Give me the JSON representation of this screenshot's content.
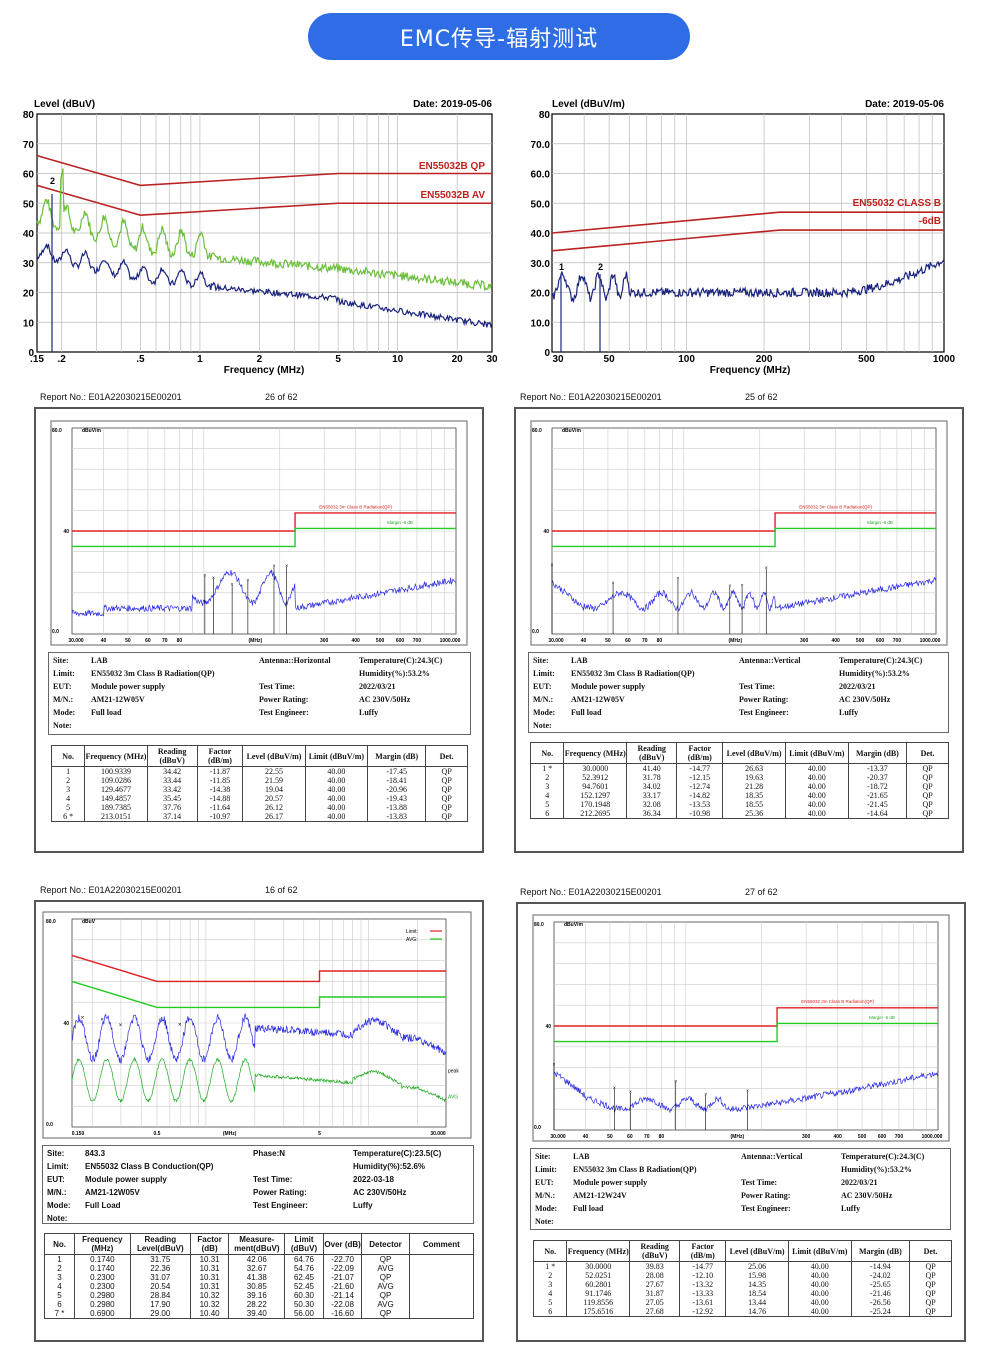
{
  "banner": {
    "title": "EMC传导-辐射测试"
  },
  "top_left": {
    "level": "Level (dBuV)",
    "date": "Date: 2019-05-06",
    "freq": "Frequency (MHz)",
    "qp": "EN55032B QP",
    "av": "EN55032B AV",
    "yticks": [
      "80",
      "70",
      "60",
      "50",
      "40",
      "30",
      "20",
      "10",
      "0"
    ],
    "xticks": [
      ".15",
      ".2",
      ".5",
      "1",
      "2",
      "5",
      "10",
      "20",
      "30"
    ]
  },
  "top_right": {
    "level": "Level (dBuV/m)",
    "date": "Date: 2019-05-06",
    "freq": "Frequency (MHz)",
    "limit": "EN55032 CLASS B",
    "margin": "-6dB",
    "yticks": [
      "80",
      "70.0",
      "60.0",
      "50.0",
      "40.0",
      "30.0",
      "20.0",
      "10.0",
      "0"
    ],
    "xticks": [
      "30",
      "50",
      "100",
      "200",
      "500",
      "1000"
    ]
  },
  "reports": [
    {
      "report": "Report No.: E01A22030215E00201",
      "page": "26 of 62"
    },
    {
      "report": "Report No.: E01A22030215E00201",
      "page": "25 of 62"
    },
    {
      "report": "Report No.: E01A22030215E00201",
      "page": "16 of 62"
    },
    {
      "report": "Report No.: E01A22030215E00201",
      "page": "27 of 62"
    }
  ],
  "rad_common": {
    "y80": "80.0",
    "y40": "40",
    "y0": "0.0",
    "unit": "dBuV/m",
    "xticks": [
      "30.000",
      "40",
      "50",
      "60",
      "70",
      "80",
      "(MHz)",
      "300",
      "400",
      "500",
      "600",
      "700",
      "1000.000"
    ],
    "limit": "EN55032 3m Class B Radiation(QP)",
    "margin": "Margin -6 dB"
  },
  "cond": {
    "y80": "80.0",
    "y40": "40",
    "y0": "0.0",
    "unit": "dBuV",
    "xticks": [
      "0.150",
      "0.5",
      "(MHz)",
      "5",
      "30.000"
    ],
    "legend_limit": "Limit:",
    "legend_avg": "AVG:",
    "peak": "peak",
    "avg": "AVG"
  },
  "info_labels": {
    "site": "Site:",
    "limit": "Limit:",
    "eut": "EUT:",
    "mn": "M/N.:",
    "mode": "Mode:",
    "note": "Note:",
    "test_time": "Test Time:",
    "power": "Power Rating:",
    "engineer": "Test Engineer:"
  },
  "info1": {
    "site": "LAB",
    "limit": "EN55032 3m Class B Radiation(QP)",
    "eut": "Module power supply",
    "mn": "AM21-12W05V",
    "mode": "Full load",
    "antenna": "Antenna::Horizontal",
    "temp": "Temperature(C):24.3(C)",
    "hum": "Humidity(%):53.2%",
    "time": "2022/03/21",
    "power": "AC 230V/50Hz",
    "engineer": "Luffy"
  },
  "info2": {
    "site": "LAB",
    "limit": "EN55032 3m Class B Radiation(QP)",
    "eut": "Module power supply",
    "mn": "AM21-12W05V",
    "mode": "Full load",
    "antenna": "Antenna::Vertical",
    "temp": "Temperature(C):24.3(C)",
    "hum": "Humidity(%):53.2%",
    "time": "2022/03/21",
    "power": "AC 230V/50Hz",
    "engineer": "Luffy"
  },
  "info3": {
    "site": "843.3",
    "limit": "EN55032 Class B Conduction(QP)",
    "eut": "Module power supply",
    "mn": "AM21-12W05V",
    "mode": "Full Load",
    "antenna": "Phase:N",
    "temp": "Temperature(C):23.5(C)",
    "hum": "Humidity(%):52.6%",
    "time": "2022-03-18",
    "power": "AC 230V/50Hz",
    "engineer": "Luffy"
  },
  "info4": {
    "site": "LAB",
    "limit": "EN55032 3m Class B Radiation(QP)",
    "eut": "Module power supply",
    "mn": "AM21-12W24V",
    "mode": "Full load",
    "antenna": "Antenna::Vertical",
    "temp": "Temperature(C):24.3(C)",
    "hum": "Humidity(%):53.2%",
    "time": "2022/03/21",
    "power": "AC 230V/50Hz",
    "engineer": "Luffy"
  },
  "rad_headers": [
    "No.",
    "Frequency (MHz)",
    "Reading (dBuV)",
    "Factor (dB/m)",
    "Level (dBuV/m)",
    "Limit (dBuV/m)",
    "Margin (dB)",
    "Det."
  ],
  "cond_headers": [
    "No.",
    "Frequency (MHz)",
    "Reading Level(dBuV)",
    "Factor (dB)",
    "Measure-ment(dBuV)",
    "Limit (dBuV)",
    "Over (dB)",
    "Detector",
    "Comment"
  ],
  "table1": [
    [
      "1",
      "100.9339",
      "34.42",
      "-11.87",
      "22.55",
      "40.00",
      "-17.45",
      "QP"
    ],
    [
      "2",
      "109.0286",
      "33.44",
      "-11.85",
      "21.59",
      "40.00",
      "-18.41",
      "QP"
    ],
    [
      "3",
      "129.4677",
      "33.42",
      "-14.38",
      "19.04",
      "40.00",
      "-20.96",
      "QP"
    ],
    [
      "4",
      "149.4857",
      "35.45",
      "-14.88",
      "20.57",
      "40.00",
      "-19.43",
      "QP"
    ],
    [
      "5",
      "189.7385",
      "37.76",
      "-11.64",
      "26.12",
      "40.00",
      "-13.88",
      "QP"
    ],
    [
      "6 *",
      "213.0151",
      "37.14",
      "-10.97",
      "26.17",
      "40.00",
      "-13.83",
      "QP"
    ]
  ],
  "table2": [
    [
      "1 *",
      "30.0000",
      "41.40",
      "-14.77",
      "26.63",
      "40.00",
      "-13.37",
      "QP"
    ],
    [
      "2",
      "52.3912",
      "31.78",
      "-12.15",
      "19.63",
      "40.00",
      "-20.37",
      "QP"
    ],
    [
      "3",
      "94.7601",
      "34.02",
      "-12.74",
      "21.28",
      "40.00",
      "-18.72",
      "QP"
    ],
    [
      "4",
      "152.1297",
      "33.17",
      "-14.82",
      "18.35",
      "40.00",
      "-21.65",
      "QP"
    ],
    [
      "5",
      "170.1948",
      "32.08",
      "-13.53",
      "18.55",
      "40.00",
      "-21.45",
      "QP"
    ],
    [
      "6",
      "212.2695",
      "36.34",
      "-10.98",
      "25.36",
      "40.00",
      "-14.64",
      "QP"
    ]
  ],
  "table3": [
    [
      "1",
      "0.1740",
      "31.75",
      "10.31",
      "42.06",
      "64.76",
      "-22.70",
      "QP",
      ""
    ],
    [
      "2",
      "0.1740",
      "22.36",
      "10.31",
      "32.67",
      "54.76",
      "-22.09",
      "AVG",
      ""
    ],
    [
      "3",
      "0.2300",
      "31.07",
      "10.31",
      "41.38",
      "62.45",
      "-21.07",
      "QP",
      ""
    ],
    [
      "4",
      "0.2300",
      "20.54",
      "10.31",
      "30.85",
      "52.45",
      "-21.60",
      "AVG",
      ""
    ],
    [
      "5",
      "0.2980",
      "28.84",
      "10.32",
      "39.16",
      "60.30",
      "-21.14",
      "QP",
      ""
    ],
    [
      "6",
      "0.2980",
      "17.90",
      "10.32",
      "28.22",
      "50.30",
      "-22.08",
      "AVG",
      ""
    ],
    [
      "7 *",
      "0.6900",
      "29.00",
      "10.40",
      "39.40",
      "56.00",
      "-16.60",
      "QP",
      ""
    ]
  ],
  "table4": [
    [
      "1 *",
      "30.0000",
      "39.83",
      "-14.77",
      "25.06",
      "40.00",
      "-14.94",
      "QP"
    ],
    [
      "2",
      "52.0251",
      "28.08",
      "-12.10",
      "15.98",
      "40.00",
      "-24.02",
      "QP"
    ],
    [
      "3",
      "60.2801",
      "27.67",
      "-13.32",
      "14.35",
      "40.00",
      "-25.65",
      "QP"
    ],
    [
      "4",
      "91.1746",
      "31.87",
      "-13.33",
      "18.54",
      "40.00",
      "-21.46",
      "QP"
    ],
    [
      "5",
      "119.8556",
      "27.05",
      "-13.61",
      "13.44",
      "40.00",
      "-26.56",
      "QP"
    ],
    [
      "6",
      "175.6516",
      "27.68",
      "-12.92",
      "14.76",
      "40.00",
      "-25.24",
      "QP"
    ]
  ],
  "chart_data": [
    {
      "type": "line",
      "title": "",
      "xlabel": "Frequency (MHz)",
      "ylabel": "Level (dBuV)",
      "xscale": "log",
      "xlim": [
        0.15,
        30
      ],
      "ylim": [
        0,
        80
      ],
      "series": [
        {
          "name": "EN55032B QP",
          "x": [
            0.15,
            0.5,
            5,
            30
          ],
          "y": [
            66,
            56,
            60,
            60
          ]
        },
        {
          "name": "EN55032B AV",
          "x": [
            0.15,
            0.5,
            5,
            30
          ],
          "y": [
            56,
            46,
            50,
            50
          ]
        }
      ],
      "markers": [
        {
          "label": "2",
          "x": 0.2,
          "y": 57
        }
      ]
    },
    {
      "type": "line",
      "title": "",
      "xlabel": "Frequency (MHz)",
      "ylabel": "Level (dBuV/m)",
      "xscale": "log",
      "xlim": [
        30,
        1000
      ],
      "ylim": [
        0,
        80
      ],
      "series": [
        {
          "name": "EN55032 CLASS B",
          "x": [
            30,
            230,
            1000
          ],
          "y": [
            40,
            47,
            47
          ]
        },
        {
          "name": "-6dB",
          "x": [
            30,
            230,
            1000
          ],
          "y": [
            34,
            41,
            41
          ]
        }
      ],
      "markers": [
        {
          "label": "1",
          "x": 32,
          "y": 26
        },
        {
          "label": "2",
          "x": 47,
          "y": 24
        }
      ]
    }
  ]
}
